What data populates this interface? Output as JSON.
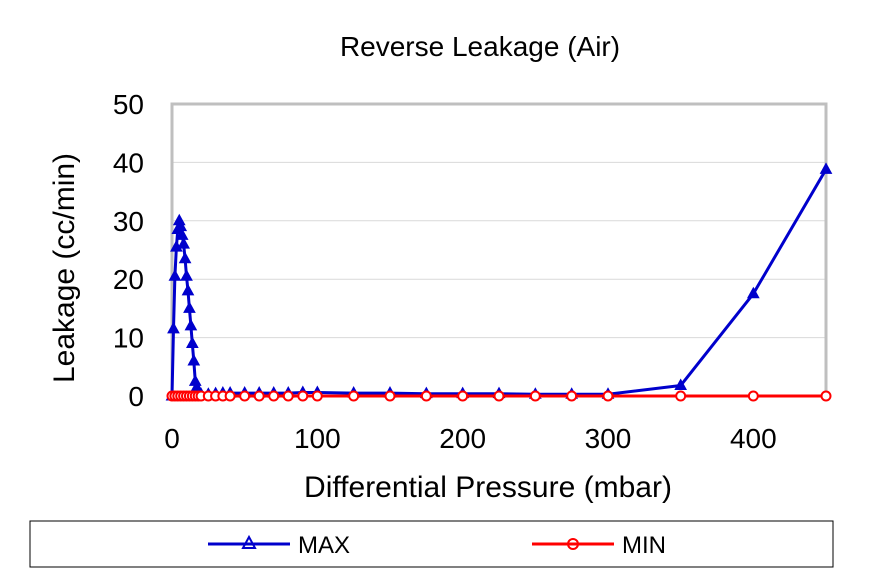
{
  "chart_data": {
    "type": "line",
    "title": "Reverse Leakage (Air)",
    "xlabel": "Differential Pressure (mbar)",
    "ylabel": "Leakage (cc/min)",
    "xlim": [
      0,
      450
    ],
    "ylim": [
      0,
      50
    ],
    "xticks": [
      0,
      100,
      200,
      300,
      400
    ],
    "yticks": [
      0,
      10,
      20,
      30,
      40,
      50
    ],
    "grid": "horizontal",
    "legend_position": "bottom",
    "series": [
      {
        "name": "MAX",
        "color": "#0000CC",
        "marker": "triangle",
        "x": [
          0,
          1,
          2,
          3,
          4,
          5,
          6,
          7,
          8,
          9,
          10,
          11,
          12,
          13,
          14,
          15,
          16,
          17,
          18,
          20,
          25,
          30,
          35,
          40,
          50,
          60,
          70,
          80,
          90,
          100,
          125,
          150,
          175,
          200,
          225,
          250,
          275,
          300,
          350,
          400,
          450
        ],
        "y": [
          0,
          11.5,
          20.5,
          25.5,
          28.5,
          30,
          29,
          27.5,
          26,
          23.5,
          20.5,
          18,
          15,
          12,
          9,
          6,
          2.5,
          1.5,
          0.5,
          0.3,
          0.3,
          0.4,
          0.5,
          0.5,
          0.5,
          0.5,
          0.5,
          0.5,
          0.6,
          0.6,
          0.5,
          0.5,
          0.4,
          0.4,
          0.4,
          0.3,
          0.3,
          0.3,
          1.8,
          17.5,
          38.8
        ]
      },
      {
        "name": "MIN",
        "color": "#FF0000",
        "marker": "circle",
        "x": [
          0,
          2,
          4,
          6,
          8,
          10,
          12,
          14,
          16,
          18,
          20,
          25,
          30,
          35,
          40,
          50,
          60,
          70,
          80,
          90,
          100,
          125,
          150,
          175,
          200,
          225,
          250,
          275,
          300,
          350,
          400,
          450
        ],
        "y": [
          0,
          0,
          0,
          0,
          0,
          0,
          0,
          0,
          0,
          0,
          0,
          0,
          0,
          0,
          0,
          0,
          0,
          0,
          0,
          0,
          0,
          0,
          0,
          0,
          0,
          0,
          0,
          0,
          0,
          0,
          0,
          0
        ]
      }
    ]
  }
}
